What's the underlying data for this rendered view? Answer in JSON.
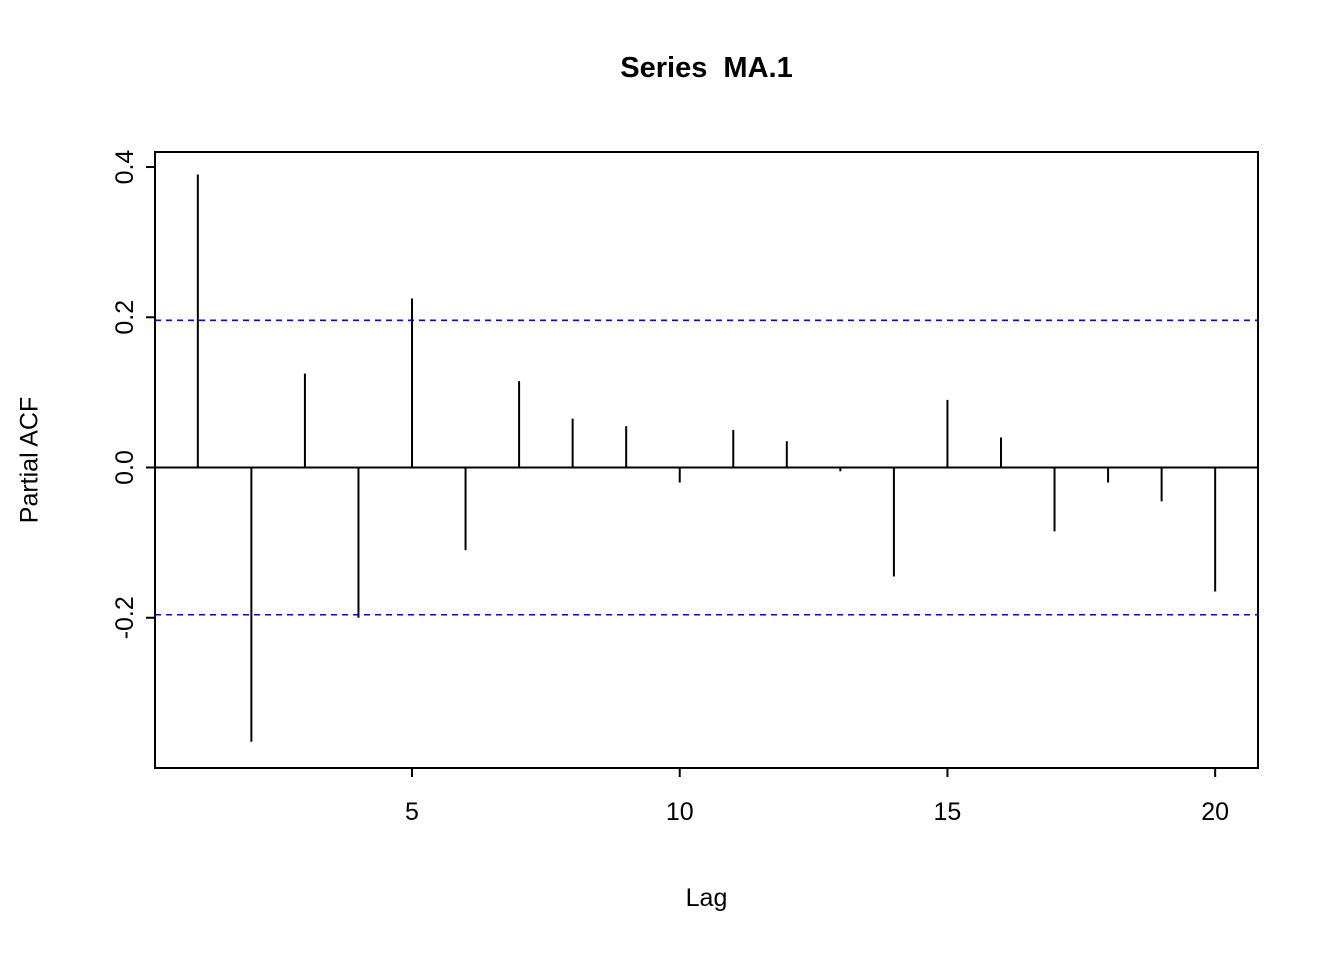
{
  "title": "Series  MA.1",
  "chart_data": {
    "type": "bar",
    "subtype": "pacf-stem-plot",
    "title": "Series  MA.1",
    "xlabel": "Lag",
    "ylabel": "Partial ACF",
    "x": [
      1,
      2,
      3,
      4,
      5,
      6,
      7,
      8,
      9,
      10,
      11,
      12,
      13,
      14,
      15,
      16,
      17,
      18,
      19,
      20
    ],
    "values": [
      0.39,
      -0.365,
      0.125,
      -0.2,
      0.225,
      -0.11,
      0.115,
      0.065,
      0.055,
      -0.02,
      0.05,
      0.035,
      -0.005,
      -0.145,
      0.09,
      0.04,
      -0.085,
      -0.02,
      -0.045,
      -0.165
    ],
    "confidence_band": 0.196,
    "confidence_color": "#0000ff",
    "spike_color": "#000000",
    "xticks": [
      5,
      10,
      15,
      20
    ],
    "xtick_labels": [
      "5",
      "10",
      "15",
      "20"
    ],
    "yticks": [
      -0.2,
      0.0,
      0.2,
      0.4
    ],
    "ytick_labels": [
      "-0.2",
      "0.0",
      "0.2",
      "0.4"
    ],
    "xlim": [
      0.2,
      20.8
    ],
    "ylim": [
      -0.4,
      0.42
    ],
    "grid": false,
    "legend": "none"
  }
}
